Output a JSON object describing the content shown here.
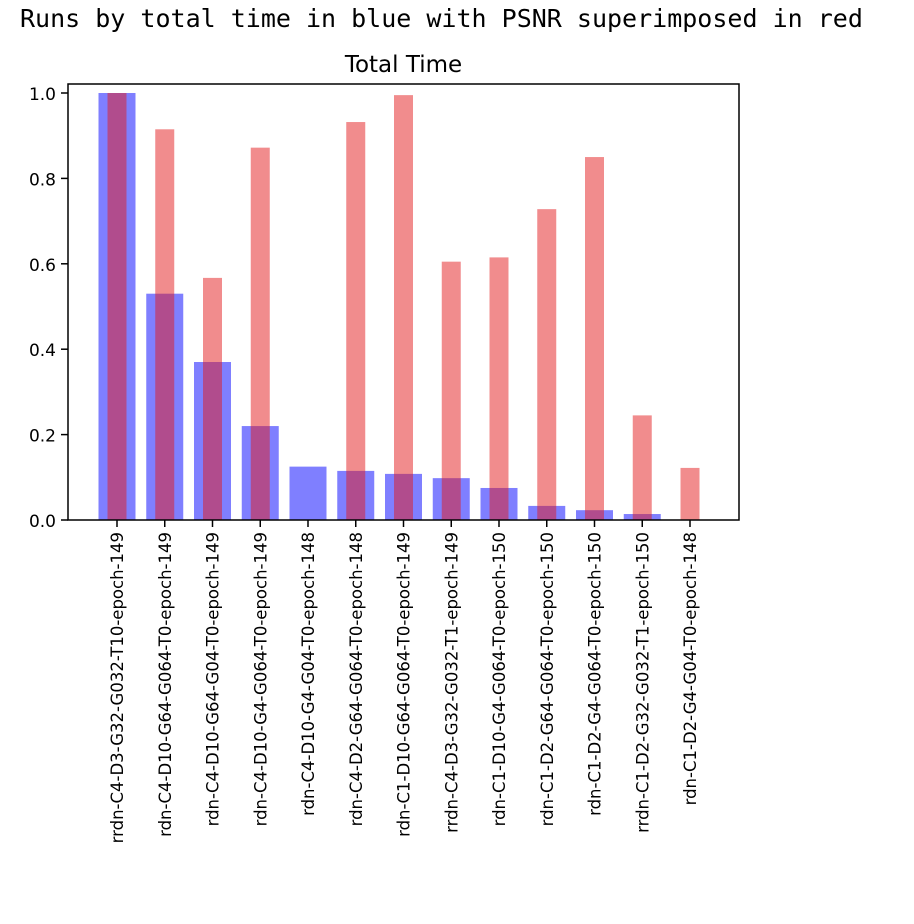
{
  "printed_output": "Runs by total time in blue with PSNR superimposed in red",
  "chart_data": {
    "type": "bar",
    "title": "Total Time",
    "xlabel": "",
    "ylabel": "",
    "ylim": [
      0,
      1.0
    ],
    "yticks": [
      "0.0",
      "0.2",
      "0.4",
      "0.6",
      "0.8",
      "1.0"
    ],
    "grid": false,
    "categories": [
      "rrdn-C4-D3-G32-G032-T10-epoch-149",
      "rdn-C4-D10-G64-G064-T0-epoch-149",
      "rdn-C4-D10-G64-G04-T0-epoch-149",
      "rdn-C4-D10-G4-G064-T0-epoch-149",
      "rdn-C4-D10-G4-G04-T0-epoch-148",
      "rdn-C4-D2-G64-G064-T0-epoch-148",
      "rdn-C1-D10-G64-G064-T0-epoch-149",
      "rrdn-C4-D3-G32-G032-T1-epoch-149",
      "rdn-C1-D10-G4-G064-T0-epoch-150",
      "rdn-C1-D2-G64-G064-T0-epoch-150",
      "rdn-C1-D2-G4-G064-T0-epoch-150",
      "rrdn-C1-D2-G32-G032-T1-epoch-150",
      "rdn-C1-D2-G4-G04-T0-epoch-148"
    ],
    "series": [
      {
        "name": "Total time",
        "color": "#0000ff",
        "opacity": 0.5,
        "values": [
          1.0,
          0.53,
          0.37,
          0.22,
          0.125,
          0.115,
          0.108,
          0.098,
          0.075,
          0.033,
          0.023,
          0.014,
          0.0
        ]
      },
      {
        "name": "PSNR",
        "color": "#e41a1c",
        "opacity": 0.5,
        "values": [
          1.0,
          0.915,
          0.567,
          0.872,
          0.0,
          0.932,
          0.995,
          0.605,
          0.615,
          0.728,
          0.85,
          0.245,
          0.122
        ]
      }
    ]
  }
}
